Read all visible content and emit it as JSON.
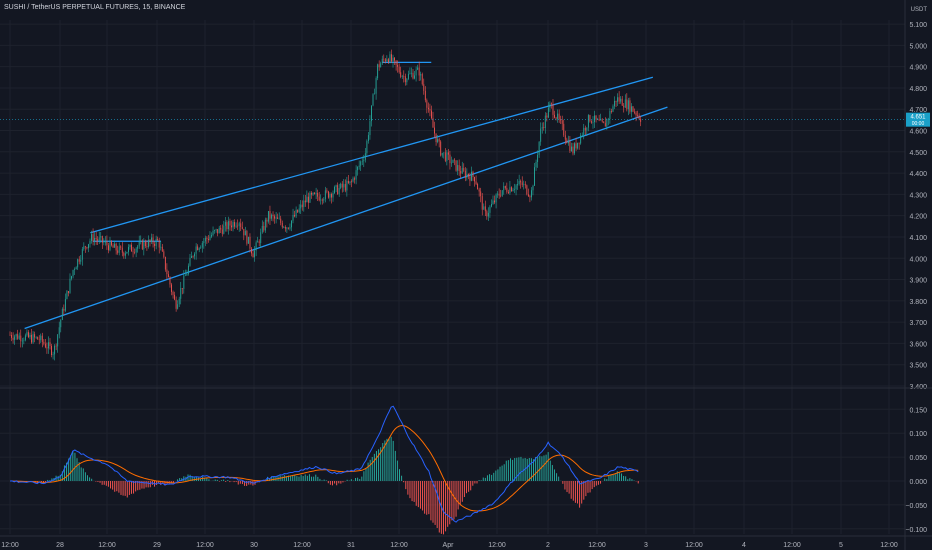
{
  "header": {
    "symbol": "SUSHI / TetherUS PERPETUAL FUTURES",
    "interval": "15",
    "exchange": "BINANCE",
    "unit_top": "USDT"
  },
  "price_label": {
    "value": "4.651",
    "sub": "00:00"
  },
  "colors": {
    "background": "#131722",
    "up": "#26a69a",
    "down": "#ef5350",
    "trendline": "#2196f3",
    "macd_line": "#2962ff",
    "signal_line": "#ff6d00",
    "grid": "#1e222d",
    "axis_text": "#b2b5be",
    "price_tag": "#1aa0c8"
  },
  "chart_data": [
    {
      "type": "candlestick",
      "title": "SUSHI / TetherUS PERPETUAL FUTURES, 15, BINANCE",
      "y_ticks": [
        "3.400",
        "3.500",
        "3.600",
        "3.700",
        "3.800",
        "3.900",
        "4.000",
        "4.100",
        "4.200",
        "4.300",
        "4.400",
        "4.500",
        "4.600",
        "4.700",
        "4.800",
        "4.900",
        "5.000",
        "5.100"
      ],
      "ylim": [
        3.4,
        5.11
      ],
      "x_ticks": [
        "12:00",
        "28",
        "12:00",
        "29",
        "12:00",
        "30",
        "12:00",
        "31",
        "12:00",
        "Apr",
        "12:00",
        "2",
        "12:00",
        "3",
        "12:00",
        "4",
        "12:00",
        "5",
        "12:00"
      ],
      "price_path_anchors": [
        {
          "x": 0,
          "y": 3.64
        },
        {
          "x": 0.6,
          "y": 3.62
        },
        {
          "x": 0.9,
          "y": 3.56
        },
        {
          "x": 1.05,
          "y": 3.72
        },
        {
          "x": 1.3,
          "y": 3.95
        },
        {
          "x": 1.55,
          "y": 4.06
        },
        {
          "x": 1.7,
          "y": 4.1
        },
        {
          "x": 2.1,
          "y": 4.05
        },
        {
          "x": 2.3,
          "y": 4.03
        },
        {
          "x": 2.8,
          "y": 4.07
        },
        {
          "x": 3.05,
          "y": 4.08
        },
        {
          "x": 3.4,
          "y": 3.78
        },
        {
          "x": 3.8,
          "y": 4.05
        },
        {
          "x": 4.2,
          "y": 4.12
        },
        {
          "x": 4.7,
          "y": 4.18
        },
        {
          "x": 5.0,
          "y": 4.02
        },
        {
          "x": 5.3,
          "y": 4.2
        },
        {
          "x": 5.7,
          "y": 4.15
        },
        {
          "x": 6.1,
          "y": 4.28
        },
        {
          "x": 6.5,
          "y": 4.3
        },
        {
          "x": 7.0,
          "y": 4.35
        },
        {
          "x": 7.3,
          "y": 4.5
        },
        {
          "x": 7.55,
          "y": 4.9
        },
        {
          "x": 7.75,
          "y": 4.95
        },
        {
          "x": 8.1,
          "y": 4.85
        },
        {
          "x": 8.4,
          "y": 4.88
        },
        {
          "x": 8.7,
          "y": 4.6
        },
        {
          "x": 8.85,
          "y": 4.5
        },
        {
          "x": 9.3,
          "y": 4.4
        },
        {
          "x": 9.55,
          "y": 4.38
        },
        {
          "x": 9.75,
          "y": 4.2
        },
        {
          "x": 10.1,
          "y": 4.32
        },
        {
          "x": 10.5,
          "y": 4.35
        },
        {
          "x": 10.7,
          "y": 4.3
        },
        {
          "x": 10.9,
          "y": 4.6
        },
        {
          "x": 11.1,
          "y": 4.72
        },
        {
          "x": 11.3,
          "y": 4.63
        },
        {
          "x": 11.55,
          "y": 4.5
        },
        {
          "x": 11.9,
          "y": 4.66
        },
        {
          "x": 12.2,
          "y": 4.62
        },
        {
          "x": 12.45,
          "y": 4.75
        },
        {
          "x": 12.7,
          "y": 4.72
        },
        {
          "x": 12.95,
          "y": 4.66
        }
      ],
      "trendlines": [
        {
          "name": "upper",
          "from": {
            "x": 1.65,
            "y": 4.12
          },
          "to": {
            "x": 13.2,
            "y": 4.85
          }
        },
        {
          "name": "lower",
          "from": {
            "x": 0.3,
            "y": 3.67
          },
          "to": {
            "x": 13.5,
            "y": 4.71
          }
        },
        {
          "name": "flag-top-1",
          "from": {
            "x": 1.7,
            "y": 4.08
          },
          "to": {
            "x": 3.1,
            "y": 4.08
          }
        },
        {
          "name": "flag-top-2",
          "from": {
            "x": 7.65,
            "y": 4.92
          },
          "to": {
            "x": 8.65,
            "y": 4.92
          }
        }
      ]
    },
    {
      "type": "macd",
      "y_ticks": [
        "0.150",
        "0.100",
        "0.050",
        "0.000",
        "−0.050",
        "−0.100"
      ],
      "ylim": [
        -0.12,
        0.17
      ],
      "macd_anchors": [
        {
          "x": 0,
          "y": 0.0
        },
        {
          "x": 0.7,
          "y": -0.005
        },
        {
          "x": 1.05,
          "y": 0.01
        },
        {
          "x": 1.3,
          "y": 0.065
        },
        {
          "x": 1.6,
          "y": 0.05
        },
        {
          "x": 2.0,
          "y": 0.035
        },
        {
          "x": 2.4,
          "y": 0.0
        },
        {
          "x": 3.3,
          "y": -0.008
        },
        {
          "x": 3.7,
          "y": 0.01
        },
        {
          "x": 4.5,
          "y": 0.008
        },
        {
          "x": 5.0,
          "y": -0.005
        },
        {
          "x": 5.5,
          "y": 0.012
        },
        {
          "x": 6.3,
          "y": 0.03
        },
        {
          "x": 6.7,
          "y": 0.015
        },
        {
          "x": 7.2,
          "y": 0.025
        },
        {
          "x": 7.5,
          "y": 0.08
        },
        {
          "x": 7.85,
          "y": 0.16
        },
        {
          "x": 8.2,
          "y": 0.09
        },
        {
          "x": 8.6,
          "y": 0.02
        },
        {
          "x": 8.9,
          "y": -0.065
        },
        {
          "x": 9.15,
          "y": -0.085
        },
        {
          "x": 9.5,
          "y": -0.07
        },
        {
          "x": 9.95,
          "y": -0.045
        },
        {
          "x": 10.4,
          "y": 0.01
        },
        {
          "x": 10.75,
          "y": 0.04
        },
        {
          "x": 11.05,
          "y": 0.08
        },
        {
          "x": 11.35,
          "y": 0.05
        },
        {
          "x": 11.7,
          "y": -0.005
        },
        {
          "x": 12.1,
          "y": 0.005
        },
        {
          "x": 12.5,
          "y": 0.03
        },
        {
          "x": 12.9,
          "y": 0.02
        }
      ]
    }
  ]
}
